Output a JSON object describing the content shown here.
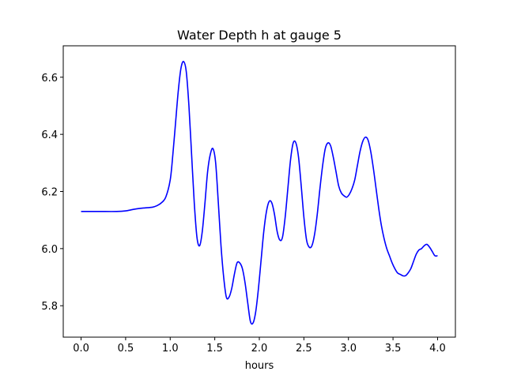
{
  "chart_data": {
    "type": "line",
    "title": "Water Depth h at gauge 5",
    "xlabel": "hours",
    "ylabel": "",
    "xlim": [
      -0.2,
      4.2
    ],
    "ylim": [
      5.69,
      6.71
    ],
    "xticks": [
      0.0,
      0.5,
      1.0,
      1.5,
      2.0,
      2.5,
      3.0,
      3.5,
      4.0
    ],
    "xtick_labels": [
      "0.0",
      "0.5",
      "1.0",
      "1.5",
      "2.0",
      "2.5",
      "3.0",
      "3.5",
      "4.0"
    ],
    "yticks": [
      5.8,
      6.0,
      6.2,
      6.4,
      6.6
    ],
    "ytick_labels": [
      "5.8",
      "6.0",
      "6.2",
      "6.4",
      "6.6"
    ],
    "grid": false,
    "series": [
      {
        "color": "#0000ff",
        "x": [
          0.0,
          0.2,
          0.4,
          0.5,
          0.6,
          0.7,
          0.8,
          0.85,
          0.9,
          0.95,
          1.0,
          1.03,
          1.06,
          1.09,
          1.12,
          1.15,
          1.18,
          1.21,
          1.24,
          1.27,
          1.3,
          1.33,
          1.36,
          1.39,
          1.42,
          1.45,
          1.48,
          1.51,
          1.54,
          1.57,
          1.6,
          1.63,
          1.66,
          1.69,
          1.72,
          1.75,
          1.78,
          1.81,
          1.84,
          1.87,
          1.9,
          1.93,
          1.96,
          1.99,
          2.02,
          2.05,
          2.08,
          2.11,
          2.14,
          2.17,
          2.2,
          2.23,
          2.26,
          2.29,
          2.32,
          2.35,
          2.38,
          2.41,
          2.44,
          2.47,
          2.5,
          2.53,
          2.56,
          2.59,
          2.62,
          2.65,
          2.68,
          2.71,
          2.74,
          2.77,
          2.8,
          2.83,
          2.86,
          2.89,
          2.92,
          2.95,
          2.98,
          3.01,
          3.04,
          3.07,
          3.1,
          3.13,
          3.16,
          3.19,
          3.22,
          3.25,
          3.28,
          3.31,
          3.34,
          3.37,
          3.4,
          3.43,
          3.46,
          3.49,
          3.52,
          3.55,
          3.58,
          3.61,
          3.64,
          3.67,
          3.7,
          3.73,
          3.76,
          3.79,
          3.82,
          3.85,
          3.88,
          3.91,
          3.94,
          3.97,
          4.0
        ],
        "y": [
          6.13,
          6.13,
          6.13,
          6.132,
          6.138,
          6.142,
          6.145,
          6.15,
          6.16,
          6.18,
          6.24,
          6.33,
          6.44,
          6.55,
          6.63,
          6.655,
          6.62,
          6.5,
          6.33,
          6.16,
          6.04,
          6.01,
          6.06,
          6.16,
          6.27,
          6.33,
          6.35,
          6.3,
          6.16,
          6.01,
          5.9,
          5.83,
          5.83,
          5.86,
          5.91,
          5.95,
          5.95,
          5.93,
          5.88,
          5.81,
          5.745,
          5.74,
          5.78,
          5.86,
          5.96,
          6.06,
          6.13,
          6.165,
          6.16,
          6.12,
          6.06,
          6.03,
          6.04,
          6.11,
          6.21,
          6.31,
          6.37,
          6.37,
          6.32,
          6.22,
          6.11,
          6.03,
          6.005,
          6.01,
          6.05,
          6.12,
          6.21,
          6.29,
          6.35,
          6.37,
          6.36,
          6.32,
          6.27,
          6.22,
          6.195,
          6.185,
          6.18,
          6.19,
          6.21,
          6.24,
          6.29,
          6.34,
          6.375,
          6.39,
          6.38,
          6.34,
          6.28,
          6.21,
          6.14,
          6.08,
          6.035,
          6.0,
          5.975,
          5.95,
          5.93,
          5.915,
          5.91,
          5.905,
          5.905,
          5.915,
          5.93,
          5.955,
          5.98,
          5.995,
          6.0,
          6.01,
          6.015,
          6.005,
          5.99,
          5.975,
          5.975
        ]
      }
    ]
  }
}
